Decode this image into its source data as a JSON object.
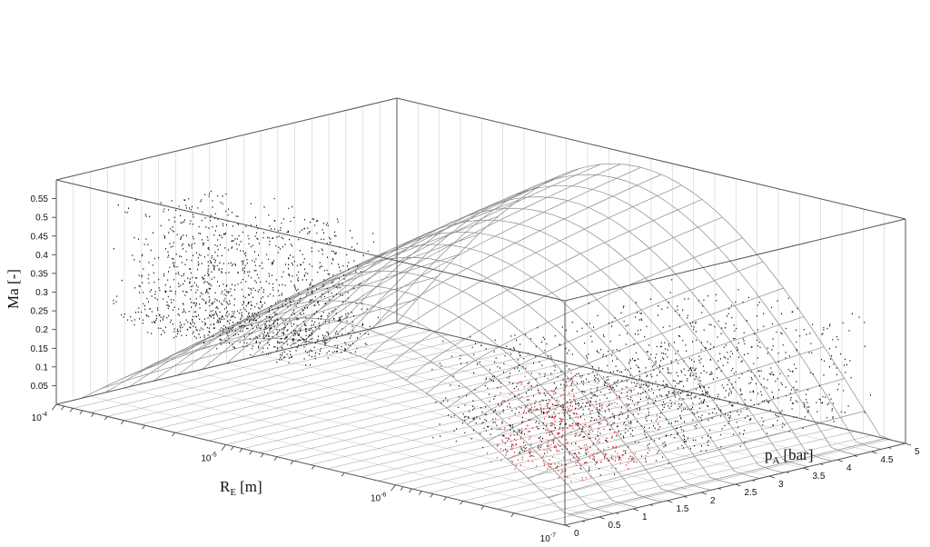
{
  "chart_data": {
    "type": "scatter",
    "dimensions": "3d",
    "axes": {
      "x": {
        "label": "R",
        "label_subscript": "E",
        "label_unit": "[m]",
        "scale": "log",
        "range": [
          1e-07,
          0.0001
        ],
        "ticks": [
          {
            "base": "10",
            "exp": "-4",
            "value": 0.0001
          },
          {
            "base": "10",
            "exp": "-5",
            "value": 1e-05
          },
          {
            "base": "10",
            "exp": "-6",
            "value": 1e-06
          },
          {
            "base": "10",
            "exp": "-7",
            "value": 1e-07
          }
        ]
      },
      "y": {
        "label": "p",
        "label_subscript": "A",
        "label_unit": "[bar]",
        "scale": "linear",
        "range": [
          0,
          5
        ],
        "ticks": [
          "0",
          "0.5",
          "1",
          "1.5",
          "2",
          "2.5",
          "3",
          "3.5",
          "4",
          "4.5",
          "5"
        ]
      },
      "z": {
        "label": "Ma [-]",
        "scale": "linear",
        "range": [
          0,
          0.6
        ],
        "ticks": [
          "0.05",
          "0.1",
          "0.15",
          "0.2",
          "0.25",
          "0.3",
          "0.35",
          "0.4",
          "0.45",
          "0.5",
          "0.55"
        ]
      }
    },
    "grid": true,
    "series": [
      {
        "color": "#000000",
        "clusters": [
          {
            "r_range": [
              8e-06,
              0.0001
            ],
            "pA_range": [
              0.8,
              2.0
            ],
            "ma_range": [
              0.18,
              0.52
            ]
          },
          {
            "r_range": [
              1e-07,
              1.2e-06
            ],
            "pA_range": [
              0.5,
              4.6
            ],
            "ma_range": [
              0.1,
              0.36
            ]
          }
        ]
      },
      {
        "color": "#e8141b",
        "clusters": [
          {
            "r_range": [
              1e-07,
              4e-07
            ],
            "pA_range": [
              0.2,
              1.4
            ],
            "ma_range": [
              0.1,
              0.32
            ]
          }
        ]
      }
    ]
  }
}
